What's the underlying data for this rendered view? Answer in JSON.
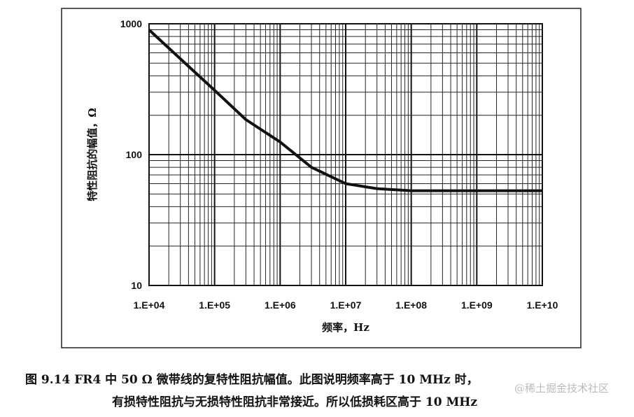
{
  "chart_data": {
    "type": "line",
    "x_label": "频率，Hz",
    "y_label": "特性阻抗的幅值，Ω",
    "x": [
      10000,
      30000,
      100000,
      300000,
      1000000,
      3000000,
      10000000,
      30000000,
      100000000,
      1000000000,
      10000000000
    ],
    "values": [
      900,
      540,
      310,
      185,
      125,
      80,
      60,
      55,
      53,
      53,
      53
    ],
    "color": "#111111",
    "xlim": [
      10000,
      10000000000
    ],
    "xticks": [
      {
        "value": 10000,
        "label": "1.E+04"
      },
      {
        "value": 100000,
        "label": "1.E+05"
      },
      {
        "value": 1000000,
        "label": "1.E+06"
      },
      {
        "value": 10000000,
        "label": "1.E+07"
      },
      {
        "value": 100000000,
        "label": "1.E+08"
      },
      {
        "value": 1000000000,
        "label": "1.E+09"
      },
      {
        "value": 10000000000,
        "label": "1.E+10"
      }
    ],
    "ylim": [
      10,
      1000
    ],
    "yticks": [
      10,
      100,
      1000
    ],
    "xlog": true,
    "ylog": true,
    "grid": true,
    "minor_grid": true
  },
  "caption": [
    "图 9.14   FR4 中 50 Ω 微带线的复特性阻抗幅值。此图说明频率高于 10 MHz 时，",
    "有损特性阻抗与无损特性阻抗非常接近。所以低损耗区高于 10 MHz"
  ],
  "watermark": "@稀土掘金技术社区"
}
